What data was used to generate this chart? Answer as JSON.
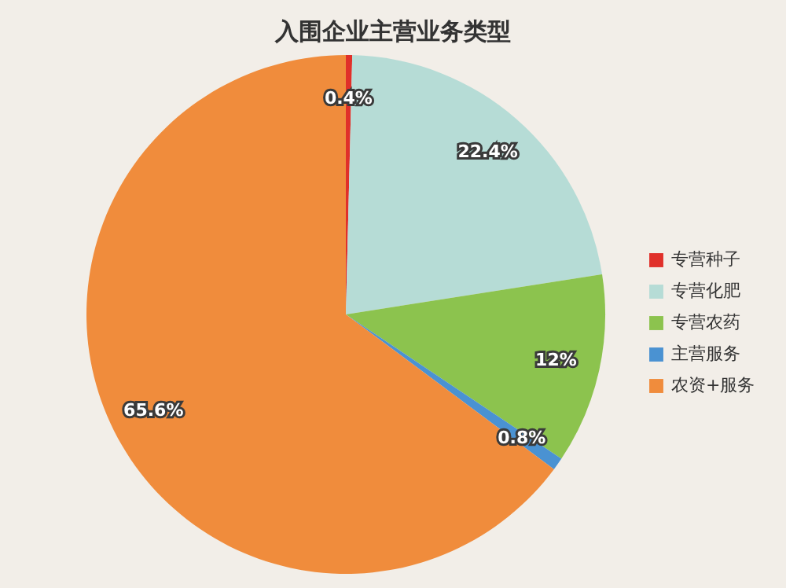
{
  "chart_data": {
    "type": "pie",
    "title": "入围企业主营业务类型",
    "categories": [
      "专营种子",
      "专营化肥",
      "专营农药",
      "主营服务",
      "农资+服务"
    ],
    "values": [
      0.4,
      22.4,
      12,
      0.8,
      65.6
    ],
    "colors": [
      "#e0302a",
      "#b6dcd6",
      "#8cc34e",
      "#4a92d2",
      "#f08c3c"
    ],
    "value_labels": [
      "0.4%",
      "22.4%",
      "12%",
      "0.8%",
      "65.6%"
    ],
    "legend": "right"
  }
}
